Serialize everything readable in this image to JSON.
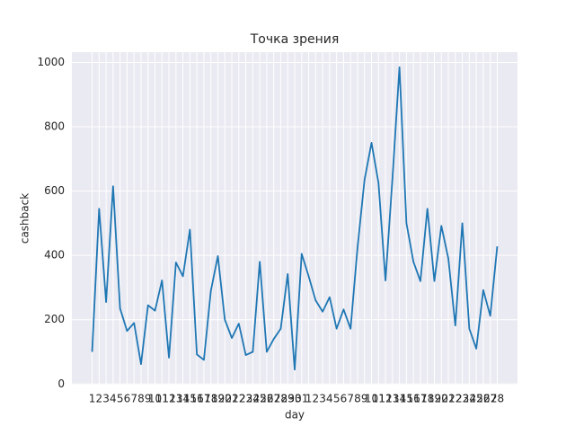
{
  "chart_data": {
    "type": "line",
    "title": "Точка зрения",
    "xlabel": "day",
    "ylabel": "cashback",
    "categories": [
      "1",
      "2",
      "3",
      "4",
      "5",
      "6",
      "7",
      "8",
      "9",
      "10",
      "11",
      "12",
      "13",
      "14",
      "15",
      "16",
      "17",
      "18",
      "19",
      "20",
      "21",
      "22",
      "23",
      "24",
      "25",
      "26",
      "27",
      "28",
      "29",
      "30",
      "31",
      "1",
      "2",
      "3",
      "4",
      "5",
      "6",
      "7",
      "8",
      "9",
      "10",
      "11",
      "12",
      "13",
      "14",
      "15",
      "16",
      "17",
      "18",
      "19",
      "20",
      "21",
      "22",
      "23",
      "24",
      "25",
      "26",
      "27",
      "28"
    ],
    "series": [
      {
        "name": "cashback",
        "color": "#1f77b4",
        "values": [
          100,
          545,
          255,
          615,
          235,
          165,
          190,
          62,
          245,
          228,
          322,
          82,
          378,
          335,
          480,
          92,
          75,
          290,
          398,
          200,
          143,
          188,
          90,
          100,
          380,
          100,
          140,
          172,
          342,
          45,
          405,
          335,
          260,
          225,
          270,
          172,
          232,
          172,
          425,
          635,
          750,
          625,
          322,
          640,
          985,
          500,
          380,
          320,
          545,
          320,
          492,
          390,
          182,
          500,
          172,
          110,
          292,
          212,
          428
        ]
      }
    ],
    "ylim": [
      -2,
      1032
    ],
    "yticks": [
      0,
      200,
      400,
      600,
      800,
      1000
    ],
    "grid": true
  }
}
